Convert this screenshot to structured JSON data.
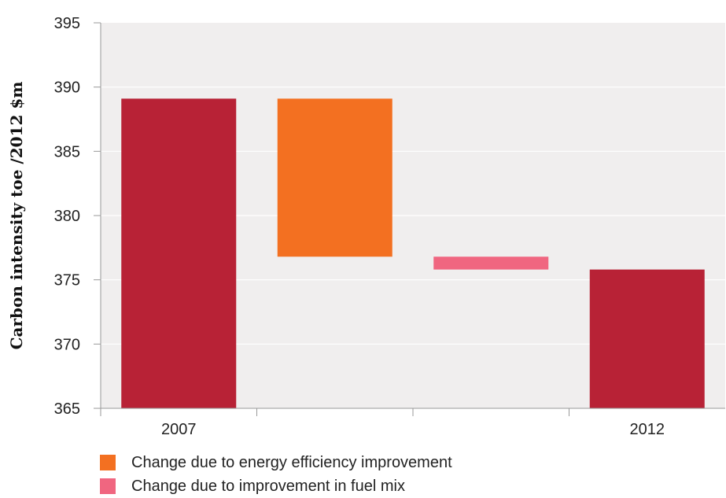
{
  "chart_data": {
    "type": "bar",
    "subtype": "waterfall",
    "ylabel": "Carbon intensity toe /2012 $m",
    "xlabel": "",
    "ylim": [
      365,
      395
    ],
    "yticks": [
      365,
      370,
      375,
      380,
      385,
      390,
      395
    ],
    "categories": [
      "2007",
      "",
      "",
      "2012"
    ],
    "bars": [
      {
        "category": "2007",
        "start": 365,
        "end": 389.1,
        "color": "#b82236"
      },
      {
        "category": "",
        "start": 389.1,
        "end": 376.8,
        "color": "#f37021",
        "legend_index": 0
      },
      {
        "category": "",
        "start": 376.8,
        "end": 375.8,
        "color": "#f06680",
        "legend_index": 1
      },
      {
        "category": "2012",
        "start": 365,
        "end": 375.8,
        "color": "#b82236"
      }
    ],
    "legend": [
      {
        "label": "Change due to energy efficiency improvement",
        "color": "#f37021"
      },
      {
        "label": "Change due to improvement in fuel mix",
        "color": "#f06680"
      }
    ],
    "legend_placement": "bottom-left",
    "grid": true,
    "background": "#f0eeee"
  }
}
